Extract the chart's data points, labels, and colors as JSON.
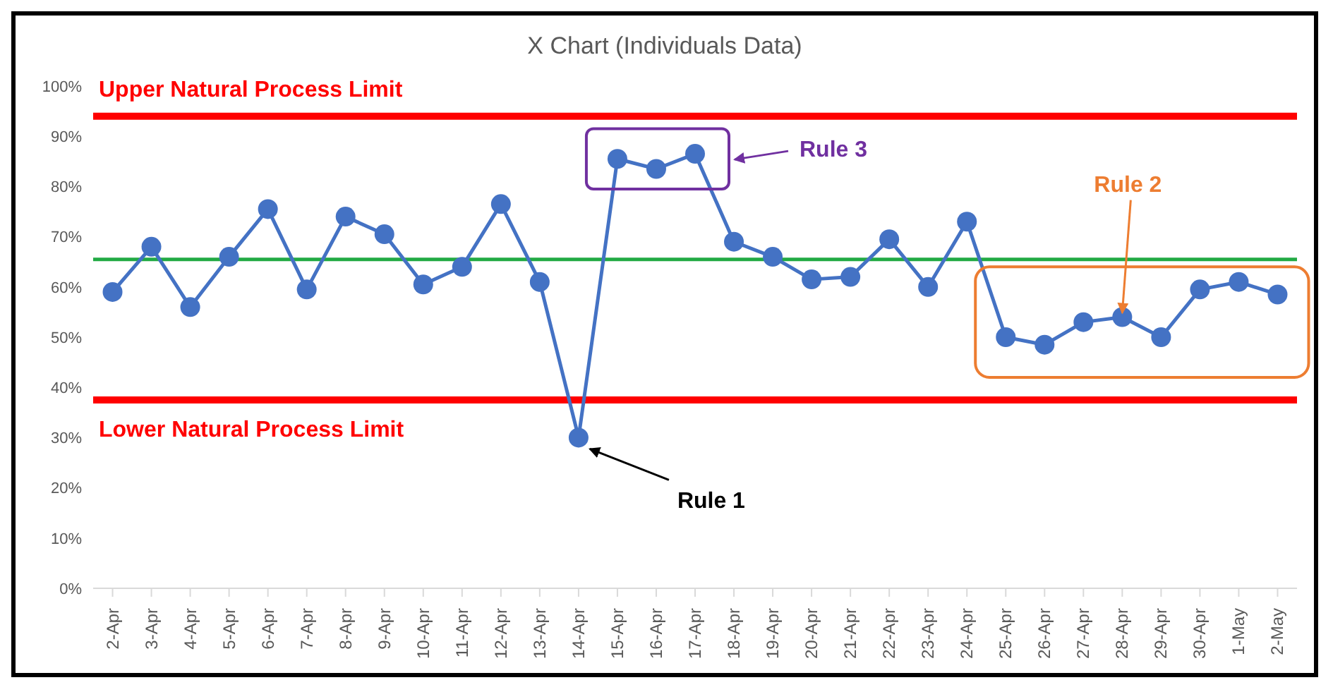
{
  "chart_data": {
    "type": "line",
    "title": "X Chart (Individuals Data)",
    "categories": [
      "2-Apr",
      "3-Apr",
      "4-Apr",
      "5-Apr",
      "6-Apr",
      "7-Apr",
      "8-Apr",
      "9-Apr",
      "10-Apr",
      "11-Apr",
      "12-Apr",
      "13-Apr",
      "14-Apr",
      "15-Apr",
      "16-Apr",
      "17-Apr",
      "18-Apr",
      "19-Apr",
      "20-Apr",
      "21-Apr",
      "22-Apr",
      "23-Apr",
      "24-Apr",
      "25-Apr",
      "26-Apr",
      "27-Apr",
      "28-Apr",
      "29-Apr",
      "30-Apr",
      "1-May",
      "2-May"
    ],
    "series": [
      {
        "color": "#4472c4",
        "values": [
          59,
          68,
          56,
          66,
          75.5,
          59.5,
          74,
          70.5,
          60.5,
          64,
          76.5,
          61,
          30,
          85.5,
          83.5,
          86.5,
          69,
          66,
          61.5,
          62,
          69.5,
          60,
          73,
          50,
          48.5,
          53,
          54,
          50,
          59.5,
          61,
          58.5
        ]
      }
    ],
    "ylim": [
      0,
      100
    ],
    "yticks": [
      {
        "value": 0,
        "label": "0%"
      },
      {
        "value": 10,
        "label": "10%"
      },
      {
        "value": 20,
        "label": "20%"
      },
      {
        "value": 30,
        "label": "30%"
      },
      {
        "value": 40,
        "label": "40%"
      },
      {
        "value": 50,
        "label": "50%"
      },
      {
        "value": 60,
        "label": "60%"
      },
      {
        "value": 70,
        "label": "70%"
      },
      {
        "value": 80,
        "label": "80%"
      },
      {
        "value": 90,
        "label": "90%"
      },
      {
        "value": 100,
        "label": "100%"
      }
    ],
    "ref_lines": [
      {
        "axis": "y",
        "value": 94,
        "label": "Upper Natural Process Limit",
        "color": "#ff0000"
      },
      {
        "axis": "y",
        "value": 37.5,
        "label": "Lower Natural Process Limit",
        "color": "#ff0000"
      },
      {
        "axis": "y",
        "value": 65.5,
        "label": null,
        "color": "#22aa44"
      }
    ],
    "annotations": [
      "Rule 1",
      {
        "text": "Rule 2",
        "x": "28-Apr",
        "y": 54
      },
      "Rule 3"
    ],
    "marker": "circle",
    "line_style": "solid",
    "grid": false,
    "legend": false
  }
}
